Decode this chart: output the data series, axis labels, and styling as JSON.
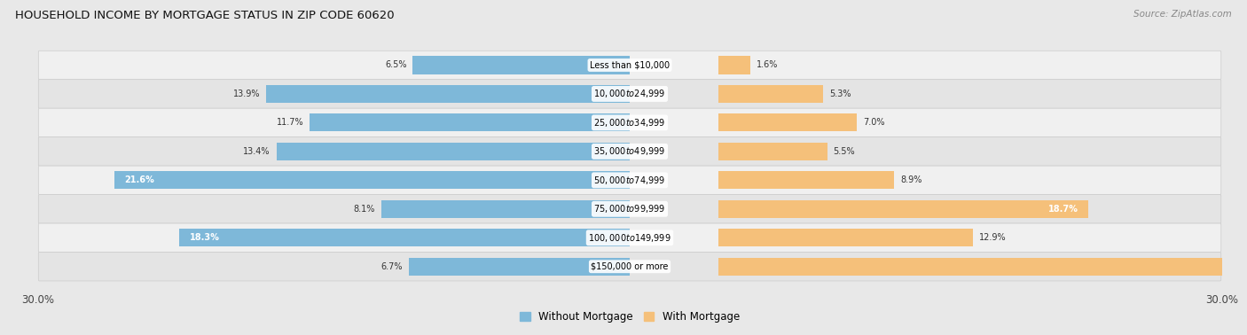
{
  "title": "HOUSEHOLD INCOME BY MORTGAGE STATUS IN ZIP CODE 60620",
  "source": "Source: ZipAtlas.com",
  "categories": [
    "Less than $10,000",
    "$10,000 to $24,999",
    "$25,000 to $34,999",
    "$35,000 to $49,999",
    "$50,000 to $74,999",
    "$75,000 to $99,999",
    "$100,000 to $149,999",
    "$150,000 or more"
  ],
  "without_mortgage": [
    6.5,
    13.9,
    11.7,
    13.4,
    21.6,
    8.1,
    18.3,
    6.7
  ],
  "with_mortgage": [
    1.6,
    5.3,
    7.0,
    5.5,
    8.9,
    18.7,
    12.9,
    29.0
  ],
  "color_without": "#7eb8d9",
  "color_with": "#f5c07a",
  "xlim": 30.0,
  "bg_color": "#e8e8e8",
  "row_colors": [
    "#f0f0f0",
    "#e4e4e4"
  ],
  "label_threshold": 14.0
}
